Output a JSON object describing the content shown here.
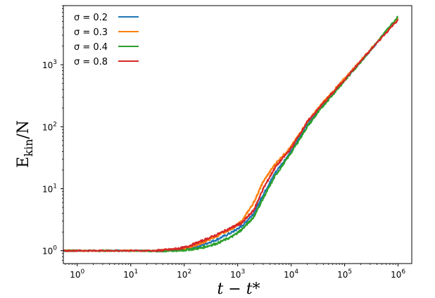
{
  "chart_data": {
    "type": "line",
    "title": "",
    "xlabel": "t − t*",
    "ylabel": "E_kin/N",
    "x_scale": "log",
    "y_scale": "log",
    "xlim": [
      0.55,
      1800000
    ],
    "ylim": [
      0.62,
      9000
    ],
    "x_ticks": [
      {
        "value": 1,
        "base": "10",
        "exp": "0"
      },
      {
        "value": 10,
        "base": "10",
        "exp": "1"
      },
      {
        "value": 100,
        "base": "10",
        "exp": "2"
      },
      {
        "value": 1000,
        "base": "10",
        "exp": "3"
      },
      {
        "value": 10000,
        "base": "10",
        "exp": "4"
      },
      {
        "value": 100000,
        "base": "10",
        "exp": "5"
      },
      {
        "value": 1000000,
        "base": "10",
        "exp": "6"
      }
    ],
    "y_ticks": [
      {
        "value": 1,
        "base": "10",
        "exp": "0"
      },
      {
        "value": 10,
        "base": "10",
        "exp": "1"
      },
      {
        "value": 100,
        "base": "10",
        "exp": "2"
      },
      {
        "value": 1000,
        "base": "10",
        "exp": "3"
      }
    ],
    "grid": false,
    "legend_position": "top-left",
    "series": [
      {
        "name": "σ = 0.2",
        "color": "#1f77b4",
        "x": [
          0.55,
          1,
          3,
          10,
          30,
          60,
          100,
          200,
          400,
          800,
          1200,
          2000,
          3000,
          5000,
          10000,
          20000,
          40000,
          100000,
          300000,
          1000000
        ],
        "y": [
          1.0,
          1.0,
          1.0,
          1.0,
          1.0,
          1.02,
          1.05,
          1.2,
          1.5,
          2.0,
          2.5,
          4.0,
          8.0,
          18,
          40,
          110,
          230,
          560,
          1700,
          5700
        ]
      },
      {
        "name": "σ = 0.3",
        "color": "#ff7f0e",
        "x": [
          0.55,
          1,
          3,
          10,
          30,
          60,
          100,
          200,
          400,
          800,
          1200,
          2000,
          3000,
          5000,
          10000,
          20000,
          40000,
          100000,
          300000,
          1000000
        ],
        "y": [
          1.0,
          1.0,
          1.0,
          1.0,
          1.0,
          1.03,
          1.08,
          1.3,
          1.7,
          2.3,
          3.0,
          6.0,
          13,
          25,
          48,
          120,
          250,
          600,
          1750,
          5600
        ]
      },
      {
        "name": "σ = 0.4",
        "color": "#2ca02c",
        "x": [
          0.55,
          1,
          3,
          10,
          30,
          60,
          100,
          200,
          400,
          800,
          1200,
          2000,
          3000,
          5000,
          10000,
          20000,
          40000,
          100000,
          300000,
          1000000
        ],
        "y": [
          1.0,
          1.0,
          1.0,
          1.0,
          0.98,
          1.0,
          1.02,
          1.1,
          1.3,
          1.7,
          2.2,
          3.5,
          7.0,
          16,
          38,
          100,
          220,
          550,
          1700,
          6000
        ]
      },
      {
        "name": "σ = 0.8",
        "color": "#d62728",
        "x": [
          0.55,
          1,
          3,
          10,
          30,
          60,
          100,
          200,
          400,
          800,
          1200,
          2000,
          3000,
          5000,
          10000,
          20000,
          40000,
          100000,
          300000,
          1000000
        ],
        "y": [
          1.0,
          1.0,
          1.0,
          1.0,
          1.0,
          1.05,
          1.12,
          1.4,
          1.8,
          2.4,
          2.8,
          4.5,
          10,
          22,
          45,
          120,
          240,
          580,
          1700,
          5400
        ]
      }
    ]
  }
}
